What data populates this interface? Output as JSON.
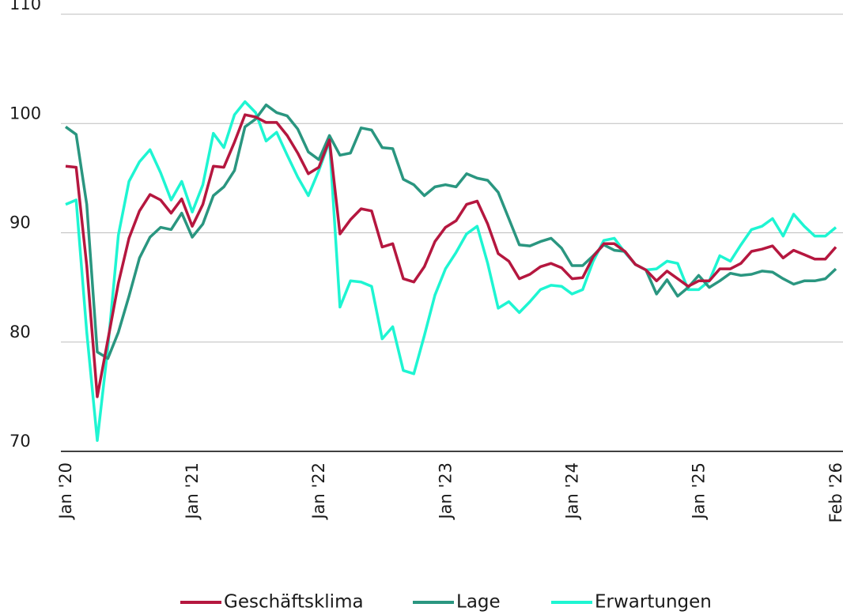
{
  "chart_data": {
    "type": "line",
    "categories": [
      "Jan '20",
      null,
      null,
      null,
      null,
      null,
      null,
      null,
      null,
      null,
      null,
      null,
      "Jan '21",
      null,
      null,
      null,
      null,
      null,
      null,
      null,
      null,
      null,
      null,
      null,
      "Jan '22",
      null,
      null,
      null,
      null,
      null,
      null,
      null,
      null,
      null,
      null,
      null,
      "Jan '23",
      null,
      null,
      null,
      null,
      null,
      null,
      null,
      null,
      null,
      null,
      null,
      "Jan '24",
      null,
      null,
      null,
      null,
      null,
      null,
      null,
      null,
      null,
      null,
      null,
      "Jan '25",
      null,
      null,
      null,
      null,
      null,
      null,
      null,
      null,
      null,
      null,
      null,
      null,
      "Feb '26"
    ],
    "series": [
      {
        "name": "Geschäftsklima",
        "color": "#b5173f",
        "values": [
          96.1,
          96.0,
          87.0,
          75.0,
          80.2,
          85.4,
          89.5,
          92.0,
          93.5,
          93.0,
          91.8,
          93.1,
          90.6,
          92.6,
          96.1,
          96.0,
          98.3,
          100.8,
          100.6,
          100.1,
          100.1,
          98.9,
          97.3,
          95.4,
          96.0,
          98.5,
          89.9,
          91.2,
          92.2,
          92.0,
          88.7,
          89.0,
          85.8,
          85.5,
          86.9,
          89.2,
          90.5,
          91.1,
          92.6,
          92.9,
          90.8,
          88.1,
          87.4,
          85.8,
          86.2,
          86.9,
          87.2,
          86.8,
          85.8,
          85.9,
          87.8,
          89.0,
          89.0,
          88.3,
          87.1,
          86.6,
          85.6,
          86.5,
          85.8,
          85.1,
          85.6,
          85.6,
          86.7,
          86.7,
          87.2,
          88.3,
          88.5,
          88.8,
          87.7,
          88.4,
          88.0,
          87.6,
          87.6,
          88.7
        ]
      },
      {
        "name": "Lage",
        "color": "#2a9680",
        "values": [
          99.7,
          99.0,
          92.6,
          79.1,
          78.5,
          80.9,
          84.2,
          87.7,
          89.6,
          90.5,
          90.3,
          91.8,
          89.6,
          90.8,
          93.4,
          94.2,
          95.7,
          99.7,
          100.4,
          101.7,
          101.0,
          100.7,
          99.5,
          97.4,
          96.7,
          98.9,
          97.1,
          97.3,
          99.6,
          99.4,
          97.8,
          97.7,
          94.9,
          94.4,
          93.4,
          94.2,
          94.4,
          94.2,
          95.4,
          95.0,
          94.8,
          93.7,
          91.3,
          88.9,
          88.8,
          89.2,
          89.5,
          88.6,
          87.0,
          87.0,
          87.9,
          88.9,
          88.4,
          88.3,
          87.1,
          86.6,
          84.4,
          85.7,
          84.2,
          85.0,
          86.1,
          85.0,
          85.6,
          86.3,
          86.1,
          86.2,
          86.5,
          86.4,
          85.8,
          85.3,
          85.6,
          85.6,
          85.8,
          86.7
        ]
      },
      {
        "name": "Erwartungen",
        "color": "#1ef5d2",
        "values": [
          92.6,
          93.0,
          80.9,
          71.0,
          79.5,
          89.8,
          94.7,
          96.5,
          97.6,
          95.5,
          93.0,
          94.7,
          91.9,
          94.4,
          99.1,
          97.8,
          100.8,
          102.0,
          101.0,
          98.4,
          99.2,
          97.1,
          95.1,
          93.4,
          95.7,
          98.4,
          83.2,
          85.6,
          85.5,
          85.1,
          80.3,
          81.4,
          77.4,
          77.1,
          80.6,
          84.3,
          86.7,
          88.2,
          89.9,
          90.6,
          87.2,
          83.1,
          83.7,
          82.7,
          83.7,
          84.8,
          85.2,
          85.1,
          84.4,
          84.8,
          87.4,
          89.3,
          89.5,
          88.2,
          87.1,
          86.6,
          86.7,
          87.4,
          87.2,
          84.8,
          84.8,
          85.6,
          87.9,
          87.4,
          88.9,
          90.3,
          90.6,
          91.3,
          89.7,
          91.7,
          90.6,
          89.7,
          89.7,
          90.5
        ]
      }
    ],
    "ylim": [
      70,
      110
    ],
    "yticks": [
      70,
      80,
      90,
      100,
      110
    ],
    "grid": true,
    "legend": "bottom"
  }
}
